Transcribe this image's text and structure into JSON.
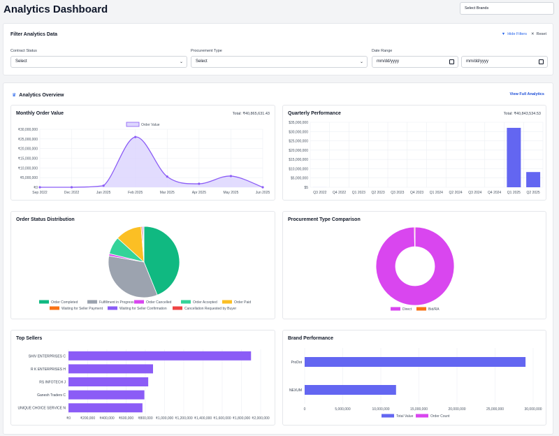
{
  "header": {
    "title": "Analytics Dashboard",
    "brand_select": "Select Brands"
  },
  "filters": {
    "title": "Filter Analytics Data",
    "hide_label": "Hide Filters",
    "reset_label": "Reset",
    "contract_status": {
      "label": "Contract Status",
      "value": "Select"
    },
    "procurement_type": {
      "label": "Procurement Type",
      "value": "Select"
    },
    "date_range": {
      "label": "Date Range",
      "from": "mm/dd/yyyy",
      "to": "mm/dd/yyyy"
    }
  },
  "overview": {
    "title": "Analytics Overview",
    "view_full": "View Full Analytics"
  },
  "colors": {
    "purple_line": "#8b5cf6",
    "purple_fill": "#ddd6fe",
    "indigo": "#6366f1",
    "magenta": "#d946ef",
    "orange": "#f97316",
    "green": "#10b981",
    "gray": "#9ca3af",
    "yellow": "#fbbf24",
    "emerald": "#34d399",
    "violet": "#8b5cf6",
    "red": "#ef4444"
  },
  "chart_data": [
    {
      "id": "monthly",
      "type": "area",
      "title": "Monthly Order Value",
      "total": "Total: ₹40,865,631.43",
      "legend": [
        "Order Value"
      ],
      "x": [
        "Sep 2022",
        "Dec 2022",
        "Jan 2025",
        "Feb 2025",
        "Mar 2025",
        "Apr 2025",
        "May 2025",
        "Jun 2025"
      ],
      "series": [
        {
          "name": "Order Value",
          "values": [
            0,
            0,
            800000,
            26000000,
            5500000,
            1800000,
            5800000,
            0
          ]
        }
      ],
      "yticks": [
        "₹0",
        "₹5,000,000",
        "₹10,000,000",
        "₹15,000,000",
        "₹20,000,000",
        "₹25,000,000",
        "₹30,000,000"
      ],
      "ylim": [
        0,
        30000000
      ]
    },
    {
      "id": "quarterly",
      "type": "bar",
      "title": "Quarterly Performance",
      "total": "Total: ₹40,843,534.53",
      "categories": [
        "Q3 2022",
        "Q4 2022",
        "Q1 2023",
        "Q2 2023",
        "Q3 2023",
        "Q4 2023",
        "Q1 2024",
        "Q2 2024",
        "Q3 2024",
        "Q4 2024",
        "Q1 2025",
        "Q2 2025"
      ],
      "values": [
        15000,
        0,
        0,
        0,
        0,
        0,
        0,
        0,
        0,
        0,
        32000000,
        8200000
      ],
      "yticks": [
        "$5",
        "$5,000,000",
        "$10,000,000",
        "$15,000,000",
        "$20,000,000",
        "$25,000,000",
        "$30,000,000",
        "$35,000,000"
      ],
      "ylim": [
        0,
        35000000
      ]
    },
    {
      "id": "order_status",
      "type": "pie",
      "title": "Order Status Distribution",
      "labels": [
        "Order Completed",
        "Fulfillment in Progress",
        "Order Cancelled",
        "Order Accepted",
        "Order Paid",
        "Waiting for Seller Payment",
        "Waiting for Seller Confirmation",
        "Cancellation Requested by Buyer"
      ],
      "values": [
        44,
        34,
        1,
        8,
        12,
        0.5,
        0.5,
        0.3
      ]
    },
    {
      "id": "procurement",
      "type": "pie",
      "title": "Procurement Type Comparison",
      "labels": [
        "Direct",
        "Bid/RA"
      ],
      "values": [
        99.7,
        0.3
      ]
    },
    {
      "id": "sellers",
      "type": "bar",
      "title": "Top Sellers",
      "categories": [
        "SHIV ENTERPRISES C",
        "R K ENTERPRISES H",
        "RS INFOTECH J",
        "Ganesh Traders C",
        "UNIQUE CHOICE SERVICE N"
      ],
      "values": [
        1900000,
        880000,
        830000,
        790000,
        770000
      ],
      "xticks": [
        "₹0",
        "₹200,000",
        "₹400,000",
        "₹600,000",
        "₹800,000",
        "₹1,000,000",
        "₹1,200,000",
        "₹1,400,000",
        "₹1,600,000",
        "₹1,800,000",
        "₹2,000,000"
      ],
      "xlim": [
        0,
        2000000
      ]
    },
    {
      "id": "brands",
      "type": "bar",
      "title": "Brand Performance",
      "categories": [
        "ProDot",
        "NEXUM"
      ],
      "series": [
        {
          "name": "Total Value",
          "values": [
            29000000,
            12000000
          ]
        },
        {
          "name": "Order Count",
          "values": [
            0,
            0
          ]
        }
      ],
      "xticks": [
        "0",
        "5,000,000",
        "10,000,000",
        "15,000,000",
        "20,000,000",
        "25,000,000",
        "30,000,000"
      ],
      "xlim": [
        0,
        30000000
      ]
    }
  ]
}
